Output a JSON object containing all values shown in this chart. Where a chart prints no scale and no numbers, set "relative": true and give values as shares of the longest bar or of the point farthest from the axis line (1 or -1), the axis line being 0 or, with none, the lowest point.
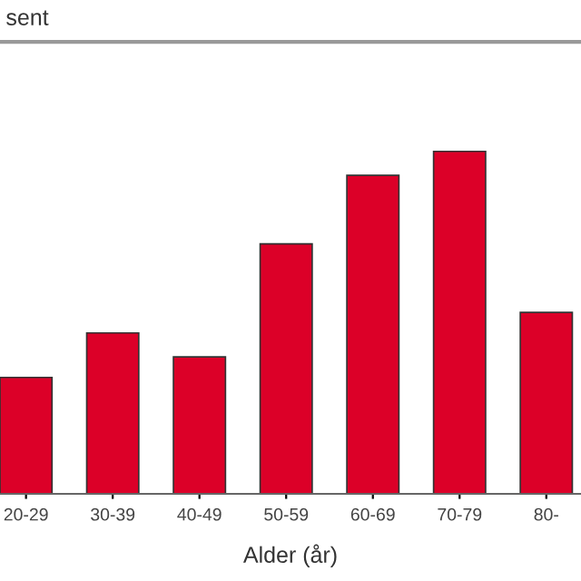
{
  "chart_data": {
    "type": "bar",
    "title": "sent",
    "xlabel": "Alder (år)",
    "categories": [
      "20-29",
      "30-39",
      "40-49",
      "50-59",
      "60-69",
      "70-79",
      "80-"
    ],
    "values": [
      0.34,
      0.47,
      0.4,
      0.73,
      0.93,
      1,
      0.53
    ],
    "color": "#dc0028",
    "relative": true,
    "grid": false,
    "legend": false
  }
}
